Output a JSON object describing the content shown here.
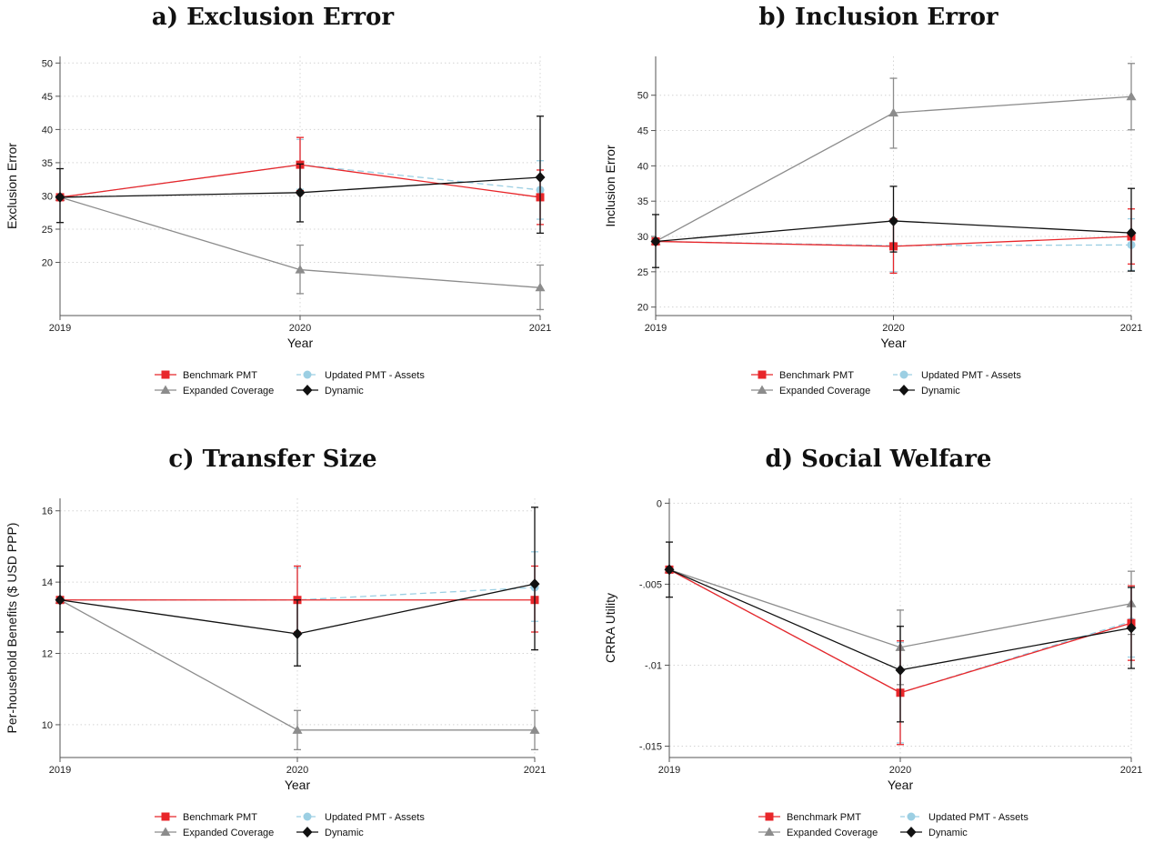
{
  "colors": {
    "benchmark": "#e8262a",
    "updated": "#9ccfe3",
    "expanded": "#8c8c8c",
    "dynamic": "#111111",
    "grid": "#d4d4d4",
    "axis": "#555555"
  },
  "legend_labels": {
    "benchmark": "Benchmark PMT",
    "updated": "Updated PMT - Assets",
    "expanded": "Expanded Coverage",
    "dynamic": "Dynamic"
  },
  "chart_data": [
    {
      "type": "line",
      "title": "a) Exclusion Error",
      "xlabel": "Year",
      "ylabel": "Exclusion Error",
      "x": [
        "2019",
        "2020",
        "2021"
      ],
      "ylim": [
        12,
        51
      ],
      "yticks": [
        20,
        25,
        30,
        35,
        40,
        45,
        50
      ],
      "ytick_labels": [
        "20",
        "25",
        "30",
        "35",
        "40",
        "45",
        "50"
      ],
      "grid": true,
      "legend_position": "bottom",
      "series": [
        {
          "key": "benchmark",
          "name": "Benchmark PMT",
          "values": [
            29.8,
            34.7,
            29.8
          ],
          "err_low": [
            null,
            30.8,
            25.7
          ],
          "err_high": [
            null,
            38.8,
            33.9
          ]
        },
        {
          "key": "updated",
          "name": "Updated PMT - Assets",
          "values": [
            29.8,
            34.7,
            30.9
          ],
          "err_low": [
            null,
            31.0,
            26.5
          ],
          "err_high": [
            null,
            38.5,
            35.3
          ]
        },
        {
          "key": "expanded",
          "name": "Expanded Coverage",
          "values": [
            29.8,
            18.9,
            16.2
          ],
          "err_low": [
            null,
            15.3,
            12.9
          ],
          "err_high": [
            null,
            22.6,
            19.6
          ]
        },
        {
          "key": "dynamic",
          "name": "Dynamic",
          "values": [
            29.8,
            30.5,
            32.8
          ],
          "err_low": [
            26.0,
            26.1,
            24.4
          ],
          "err_high": [
            34.1,
            34.8,
            42.0
          ]
        }
      ]
    },
    {
      "type": "line",
      "title": "b) Inclusion Error",
      "xlabel": "Year",
      "ylabel": "Inclusion Error",
      "x": [
        "2019",
        "2020",
        "2021"
      ],
      "ylim": [
        18.8,
        55.5
      ],
      "yticks": [
        20,
        25,
        30,
        35,
        40,
        45,
        50
      ],
      "ytick_labels": [
        "20",
        "25",
        "30",
        "35",
        "40",
        "45",
        "50"
      ],
      "grid": true,
      "legend_position": "bottom",
      "series": [
        {
          "key": "benchmark",
          "name": "Benchmark PMT",
          "values": [
            29.3,
            28.6,
            30.0
          ],
          "err_low": [
            null,
            24.8,
            26.1
          ],
          "err_high": [
            null,
            32.5,
            33.9
          ]
        },
        {
          "key": "updated",
          "name": "Updated PMT - Assets",
          "values": [
            29.3,
            28.7,
            28.8
          ],
          "err_low": [
            null,
            25.0,
            25.2
          ],
          "err_high": [
            null,
            32.4,
            32.5
          ]
        },
        {
          "key": "expanded",
          "name": "Expanded Coverage",
          "values": [
            29.3,
            47.5,
            49.8
          ],
          "err_low": [
            null,
            42.5,
            45.1
          ],
          "err_high": [
            null,
            52.4,
            54.5
          ]
        },
        {
          "key": "dynamic",
          "name": "Dynamic",
          "values": [
            29.3,
            32.2,
            30.5
          ],
          "err_low": [
            25.6,
            27.8,
            25.1
          ],
          "err_high": [
            33.1,
            37.1,
            36.8
          ]
        }
      ]
    },
    {
      "type": "line",
      "title": "c) Transfer Size",
      "xlabel": "Year",
      "ylabel": "Per-household Benefits ($ USD PPP)",
      "x": [
        "2019",
        "2020",
        "2021"
      ],
      "ylim": [
        9.08,
        16.35
      ],
      "yticks": [
        10,
        12,
        14,
        16
      ],
      "ytick_labels": [
        "10",
        "12",
        "14",
        "16"
      ],
      "grid": true,
      "legend_position": "bottom",
      "series": [
        {
          "key": "benchmark",
          "name": "Benchmark PMT",
          "values": [
            13.5,
            13.5,
            13.5
          ],
          "err_low": [
            null,
            12.6,
            12.6
          ],
          "err_high": [
            null,
            14.45,
            14.45
          ]
        },
        {
          "key": "updated",
          "name": "Updated PMT - Assets",
          "values": [
            13.5,
            13.5,
            13.85
          ],
          "err_low": [
            null,
            12.6,
            12.9
          ],
          "err_high": [
            null,
            14.4,
            14.85
          ]
        },
        {
          "key": "expanded",
          "name": "Expanded Coverage",
          "values": [
            13.5,
            9.85,
            9.85
          ],
          "err_low": [
            null,
            9.3,
            9.3
          ],
          "err_high": [
            null,
            10.4,
            10.4
          ]
        },
        {
          "key": "dynamic",
          "name": "Dynamic",
          "values": [
            13.5,
            12.55,
            13.95
          ],
          "err_low": [
            12.6,
            11.65,
            12.1
          ],
          "err_high": [
            14.45,
            13.5,
            16.1
          ]
        }
      ]
    },
    {
      "type": "line",
      "title": "d) Social Welfare",
      "xlabel": "Year",
      "ylabel": "CRRA Utility",
      "x": [
        "2019",
        "2020",
        "2021"
      ],
      "ylim": [
        -0.0157,
        0.0003
      ],
      "yticks": [
        0,
        -0.005,
        -0.01,
        -0.015
      ],
      "ytick_labels": [
        "0",
        "-.005",
        "-.01",
        "-.015"
      ],
      "grid": true,
      "legend_position": "bottom",
      "series": [
        {
          "key": "benchmark",
          "name": "Benchmark PMT",
          "values": [
            -0.0041,
            -0.0117,
            -0.0074
          ],
          "err_low": [
            null,
            -0.0149,
            -0.0097
          ],
          "err_high": [
            null,
            -0.0085,
            -0.0051
          ]
        },
        {
          "key": "updated",
          "name": "Updated PMT - Assets",
          "values": [
            -0.0041,
            -0.0117,
            -0.0073
          ],
          "err_low": [
            null,
            -0.0148,
            -0.0095
          ],
          "err_high": [
            null,
            -0.0086,
            -0.0052
          ]
        },
        {
          "key": "expanded",
          "name": "Expanded Coverage",
          "values": [
            -0.0041,
            -0.0089,
            -0.0062
          ],
          "err_low": [
            null,
            -0.0112,
            -0.0081
          ],
          "err_high": [
            null,
            -0.0066,
            -0.0042
          ]
        },
        {
          "key": "dynamic",
          "name": "Dynamic",
          "values": [
            -0.0041,
            -0.0103,
            -0.0077
          ],
          "err_low": [
            -0.0058,
            -0.0135,
            -0.0102
          ],
          "err_high": [
            -0.0024,
            -0.0076,
            -0.0052
          ]
        }
      ]
    }
  ]
}
